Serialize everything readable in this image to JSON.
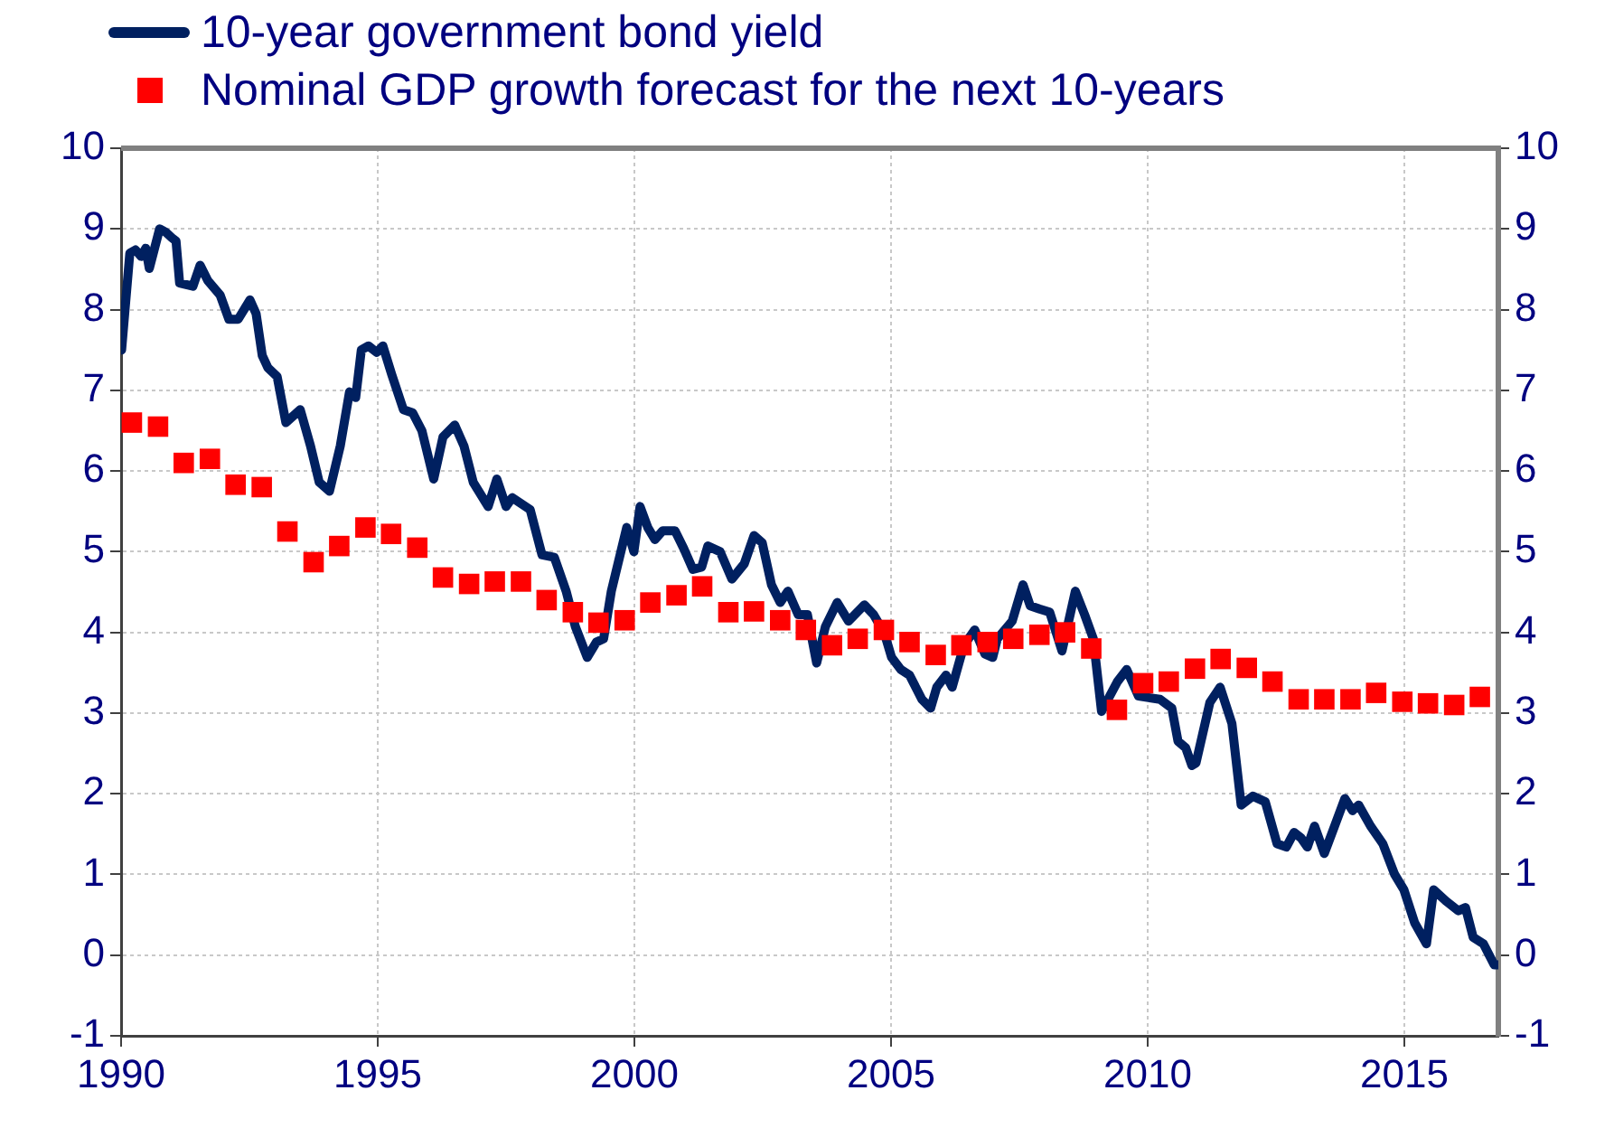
{
  "chart_data": {
    "type": "line",
    "xlim": [
      1990,
      2016.83
    ],
    "xticks": [
      1990,
      1995,
      2000,
      2005,
      2010,
      2015
    ],
    "ylim": [
      -1,
      10
    ],
    "yticks": [
      -1,
      0,
      1,
      2,
      3,
      4,
      5,
      6,
      7,
      8,
      9,
      10
    ],
    "y2lim": [
      -1,
      10
    ],
    "y2ticks": [
      -1,
      0,
      1,
      2,
      3,
      4,
      5,
      6,
      7,
      8,
      9,
      10
    ],
    "grid": true,
    "legend": "top left",
    "series": [
      {
        "name": "10-year government bond yield",
        "color": "#002060",
        "marker": "none",
        "line_style": "solid",
        "x": [
          1990.01,
          1990.17,
          1990.28,
          1990.39,
          1990.48,
          1990.55,
          1990.75,
          1990.87,
          1990.99,
          1991.07,
          1991.14,
          1991.4,
          1991.54,
          1991.69,
          1991.93,
          1992.1,
          1992.28,
          1992.51,
          1992.63,
          1992.75,
          1992.86,
          1993.04,
          1993.21,
          1993.49,
          1993.69,
          1993.86,
          1994.06,
          1994.27,
          1994.45,
          1994.57,
          1994.68,
          1994.82,
          1994.98,
          1995.1,
          1995.27,
          1995.5,
          1995.68,
          1995.86,
          1996.09,
          1996.27,
          1996.5,
          1996.68,
          1996.86,
          1997.15,
          1997.32,
          1997.5,
          1997.62,
          1997.97,
          1998.2,
          1998.44,
          1998.67,
          1998.85,
          1999.08,
          1999.26,
          1999.4,
          1999.55,
          1999.85,
          1999.99,
          2000.11,
          2000.26,
          2000.4,
          2000.55,
          2000.79,
          2000.96,
          2001.14,
          2001.31,
          2001.43,
          2001.67,
          2001.9,
          2002.14,
          2002.33,
          2002.49,
          2002.67,
          2002.84,
          2002.99,
          2003.19,
          2003.37,
          2003.55,
          2003.72,
          2003.95,
          2004.17,
          2004.48,
          2004.66,
          2004.87,
          2005.01,
          2005.19,
          2005.36,
          2005.6,
          2005.77,
          2005.89,
          2006.07,
          2006.19,
          2006.42,
          2006.63,
          2006.83,
          2006.98,
          2007.07,
          2007.36,
          2007.57,
          2007.71,
          2007.89,
          2008.09,
          2008.33,
          2008.59,
          2008.77,
          2008.94,
          2009.1,
          2009.41,
          2009.59,
          2009.82,
          2010.24,
          2010.47,
          2010.59,
          2010.74,
          2010.86,
          2010.94,
          2011.21,
          2011.41,
          2011.64,
          2011.82,
          2012.05,
          2012.29,
          2012.52,
          2012.7,
          2012.85,
          2012.99,
          2013.11,
          2013.25,
          2013.44,
          2013.64,
          2013.84,
          2013.99,
          2014.11,
          2014.34,
          2014.58,
          2014.81,
          2014.99,
          2015.2,
          2015.43,
          2015.57,
          2015.81,
          2016.05,
          2016.19,
          2016.34,
          2016.54,
          2016.75,
          2016.83
        ],
        "values": [
          7.5,
          8.7,
          8.74,
          8.66,
          8.76,
          8.51,
          9.0,
          8.96,
          8.89,
          8.85,
          8.33,
          8.29,
          8.55,
          8.36,
          8.18,
          7.88,
          7.88,
          8.12,
          7.95,
          7.43,
          7.28,
          7.17,
          6.6,
          6.76,
          6.31,
          5.86,
          5.75,
          6.31,
          6.98,
          6.91,
          7.5,
          7.55,
          7.47,
          7.55,
          7.2,
          6.76,
          6.72,
          6.5,
          5.9,
          6.42,
          6.57,
          6.31,
          5.86,
          5.56,
          5.9,
          5.56,
          5.67,
          5.52,
          4.96,
          4.93,
          4.51,
          4.07,
          3.69,
          3.88,
          3.92,
          4.51,
          5.3,
          5.0,
          5.56,
          5.3,
          5.15,
          5.26,
          5.26,
          5.04,
          4.78,
          4.81,
          5.07,
          5.0,
          4.66,
          4.85,
          5.2,
          5.11,
          4.59,
          4.37,
          4.51,
          4.22,
          4.22,
          3.62,
          4.07,
          4.37,
          4.14,
          4.34,
          4.22,
          3.99,
          3.69,
          3.54,
          3.47,
          3.17,
          3.06,
          3.32,
          3.47,
          3.32,
          3.84,
          4.03,
          3.73,
          3.69,
          3.92,
          4.14,
          4.59,
          4.33,
          4.29,
          4.25,
          3.77,
          4.51,
          4.22,
          3.92,
          3.02,
          3.39,
          3.54,
          3.21,
          3.17,
          3.06,
          2.65,
          2.57,
          2.35,
          2.38,
          3.13,
          3.32,
          2.87,
          1.86,
          1.97,
          1.9,
          1.38,
          1.34,
          1.52,
          1.45,
          1.34,
          1.6,
          1.26,
          1.6,
          1.94,
          1.79,
          1.86,
          1.6,
          1.38,
          1.0,
          0.81,
          0.4,
          0.14,
          0.81,
          0.67,
          0.55,
          0.59,
          0.22,
          0.14,
          -0.12,
          -0.12
        ]
      },
      {
        "name": "Nominal GDP growth forecast for the next 10-years",
        "type": "scatter",
        "color": "#ff0000",
        "marker": "square",
        "x": [
          1990.21,
          1990.72,
          1991.22,
          1991.73,
          1992.23,
          1992.74,
          1993.24,
          1993.75,
          1994.25,
          1994.76,
          1995.26,
          1995.77,
          1996.27,
          1996.78,
          1997.28,
          1997.79,
          1998.29,
          1998.8,
          1999.3,
          1999.81,
          2000.31,
          2000.82,
          2001.32,
          2001.83,
          2002.33,
          2002.84,
          2003.34,
          2003.85,
          2004.35,
          2004.86,
          2005.36,
          2005.87,
          2006.37,
          2006.88,
          2007.38,
          2007.89,
          2008.39,
          2008.9,
          2009.4,
          2009.91,
          2010.41,
          2010.92,
          2011.42,
          2011.93,
          2012.43,
          2012.94,
          2013.44,
          2013.95,
          2014.45,
          2014.96,
          2015.46,
          2015.97,
          2016.47
        ],
        "values": [
          6.6,
          6.55,
          6.1,
          6.15,
          5.83,
          5.8,
          5.25,
          4.87,
          5.07,
          5.3,
          5.22,
          5.05,
          4.68,
          4.6,
          4.63,
          4.63,
          4.4,
          4.25,
          4.12,
          4.15,
          4.37,
          4.46,
          4.57,
          4.25,
          4.26,
          4.15,
          4.03,
          3.84,
          3.92,
          4.03,
          3.88,
          3.72,
          3.84,
          3.88,
          3.92,
          3.97,
          4.0,
          3.8,
          3.04,
          3.37,
          3.39,
          3.55,
          3.67,
          3.56,
          3.39,
          3.17,
          3.17,
          3.17,
          3.25,
          3.14,
          3.12,
          3.1,
          3.2
        ]
      }
    ]
  }
}
